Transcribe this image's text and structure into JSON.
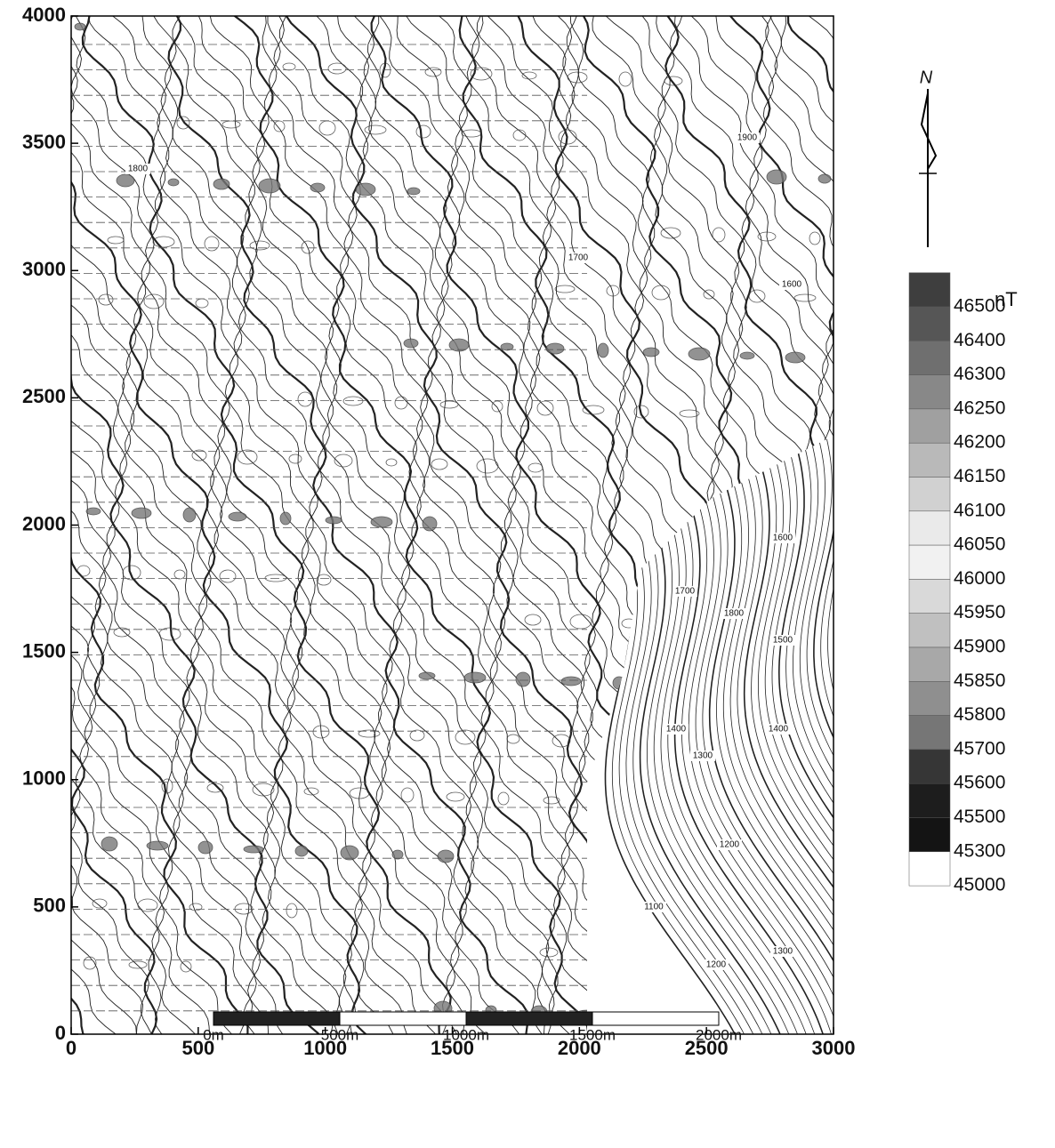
{
  "map": {
    "xlim": [
      0,
      3000
    ],
    "ylim": [
      0,
      4000
    ],
    "xticks": [
      0,
      500,
      1000,
      1500,
      2000,
      2500,
      3000
    ],
    "yticks": [
      0,
      500,
      1000,
      1500,
      2000,
      2500,
      3000,
      3500,
      4000
    ],
    "contour_labels": [
      "1900",
      "1800",
      "1700",
      "1600",
      "1700",
      "1600",
      "1800",
      "1400",
      "1300",
      "1200",
      "1100",
      "1200",
      "1300",
      "1400",
      "1500"
    ],
    "north": "N",
    "colorbar": {
      "unit": "nT",
      "labels": [
        46500,
        46400,
        46300,
        46250,
        46200,
        46150,
        46100,
        46050,
        46000,
        45950,
        45900,
        45850,
        45800,
        45700,
        45600,
        45500,
        45300,
        45000
      ]
    },
    "scale_bar": [
      {
        "value": 0,
        "label": "0m"
      },
      {
        "value": 500,
        "label": "500m"
      },
      {
        "value": 1000,
        "label": "1000m"
      },
      {
        "value": 1500,
        "label": "1500m"
      },
      {
        "value": 2000,
        "label": "2000m"
      }
    ]
  }
}
